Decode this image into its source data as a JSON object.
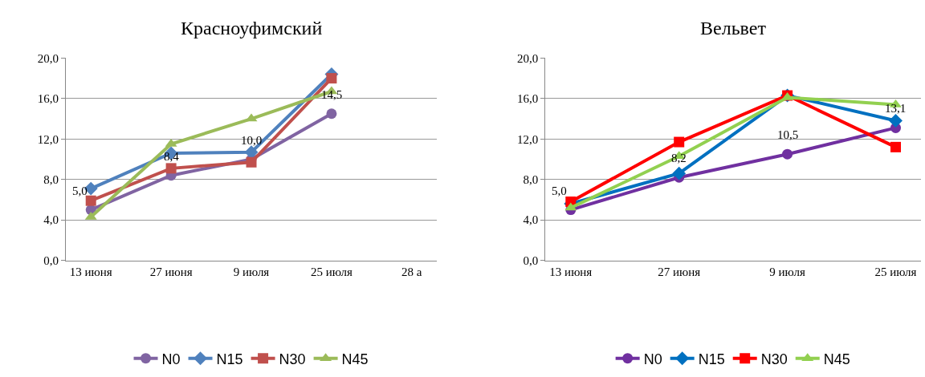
{
  "chart_data": [
    {
      "type": "line",
      "title": "Красноуфимский",
      "categories": [
        "13 июня",
        "27 июня",
        "9 июля",
        "25 июля",
        "28 а"
      ],
      "ylim": [
        0,
        20
      ],
      "yticks": [
        {
          "value": 0,
          "label": "0,0"
        },
        {
          "value": 4,
          "label": "4,0"
        },
        {
          "value": 8,
          "label": "8,0"
        },
        {
          "value": 12,
          "label": "12,0"
        },
        {
          "value": 16,
          "label": "16,0"
        },
        {
          "value": 20,
          "label": "20,0"
        }
      ],
      "grid": "y",
      "legend": "bottom",
      "series": [
        {
          "name": "N0",
          "color": "#8064a2",
          "marker": "circle",
          "values": [
            5.0,
            8.4,
            10.0,
            14.5,
            null
          ],
          "value_labels": [
            "5,0",
            "8,4",
            "10,0",
            "14,5",
            null
          ]
        },
        {
          "name": "N15",
          "color": "#4f81bd",
          "marker": "diamond",
          "values": [
            7.1,
            10.6,
            10.7,
            18.4,
            null
          ]
        },
        {
          "name": "N30",
          "color": "#c0504d",
          "marker": "square",
          "values": [
            5.9,
            9.1,
            9.7,
            18.0,
            null
          ]
        },
        {
          "name": "N45",
          "color": "#9bbb59",
          "marker": "triangle",
          "values": [
            4.3,
            11.5,
            14.0,
            16.7,
            null
          ]
        }
      ]
    },
    {
      "type": "line",
      "title": "Вельвет",
      "categories": [
        "13 июня",
        "27 июня",
        "9 июля",
        "25 июля"
      ],
      "ylim": [
        0,
        20
      ],
      "yticks": [
        {
          "value": 0,
          "label": "0,0"
        },
        {
          "value": 4,
          "label": "4,0"
        },
        {
          "value": 8,
          "label": "8,0"
        },
        {
          "value": 12,
          "label": "12,0"
        },
        {
          "value": 16,
          "label": "16,0"
        },
        {
          "value": 20,
          "label": "20,0"
        }
      ],
      "grid": "y",
      "legend": "bottom",
      "series": [
        {
          "name": "N0",
          "color": "#7030a0",
          "marker": "circle",
          "values": [
            5.0,
            8.2,
            10.5,
            13.1
          ],
          "value_labels": [
            "5,0",
            "8,2",
            "10,5",
            "13,1"
          ]
        },
        {
          "name": "N15",
          "color": "#0070c0",
          "marker": "diamond",
          "values": [
            5.6,
            8.6,
            16.3,
            13.8
          ]
        },
        {
          "name": "N30",
          "color": "#ff0000",
          "marker": "square",
          "values": [
            5.8,
            11.7,
            16.3,
            11.2
          ]
        },
        {
          "name": "N45",
          "color": "#92d050",
          "marker": "triangle",
          "values": [
            5.2,
            10.3,
            16.1,
            15.4
          ]
        }
      ]
    }
  ]
}
